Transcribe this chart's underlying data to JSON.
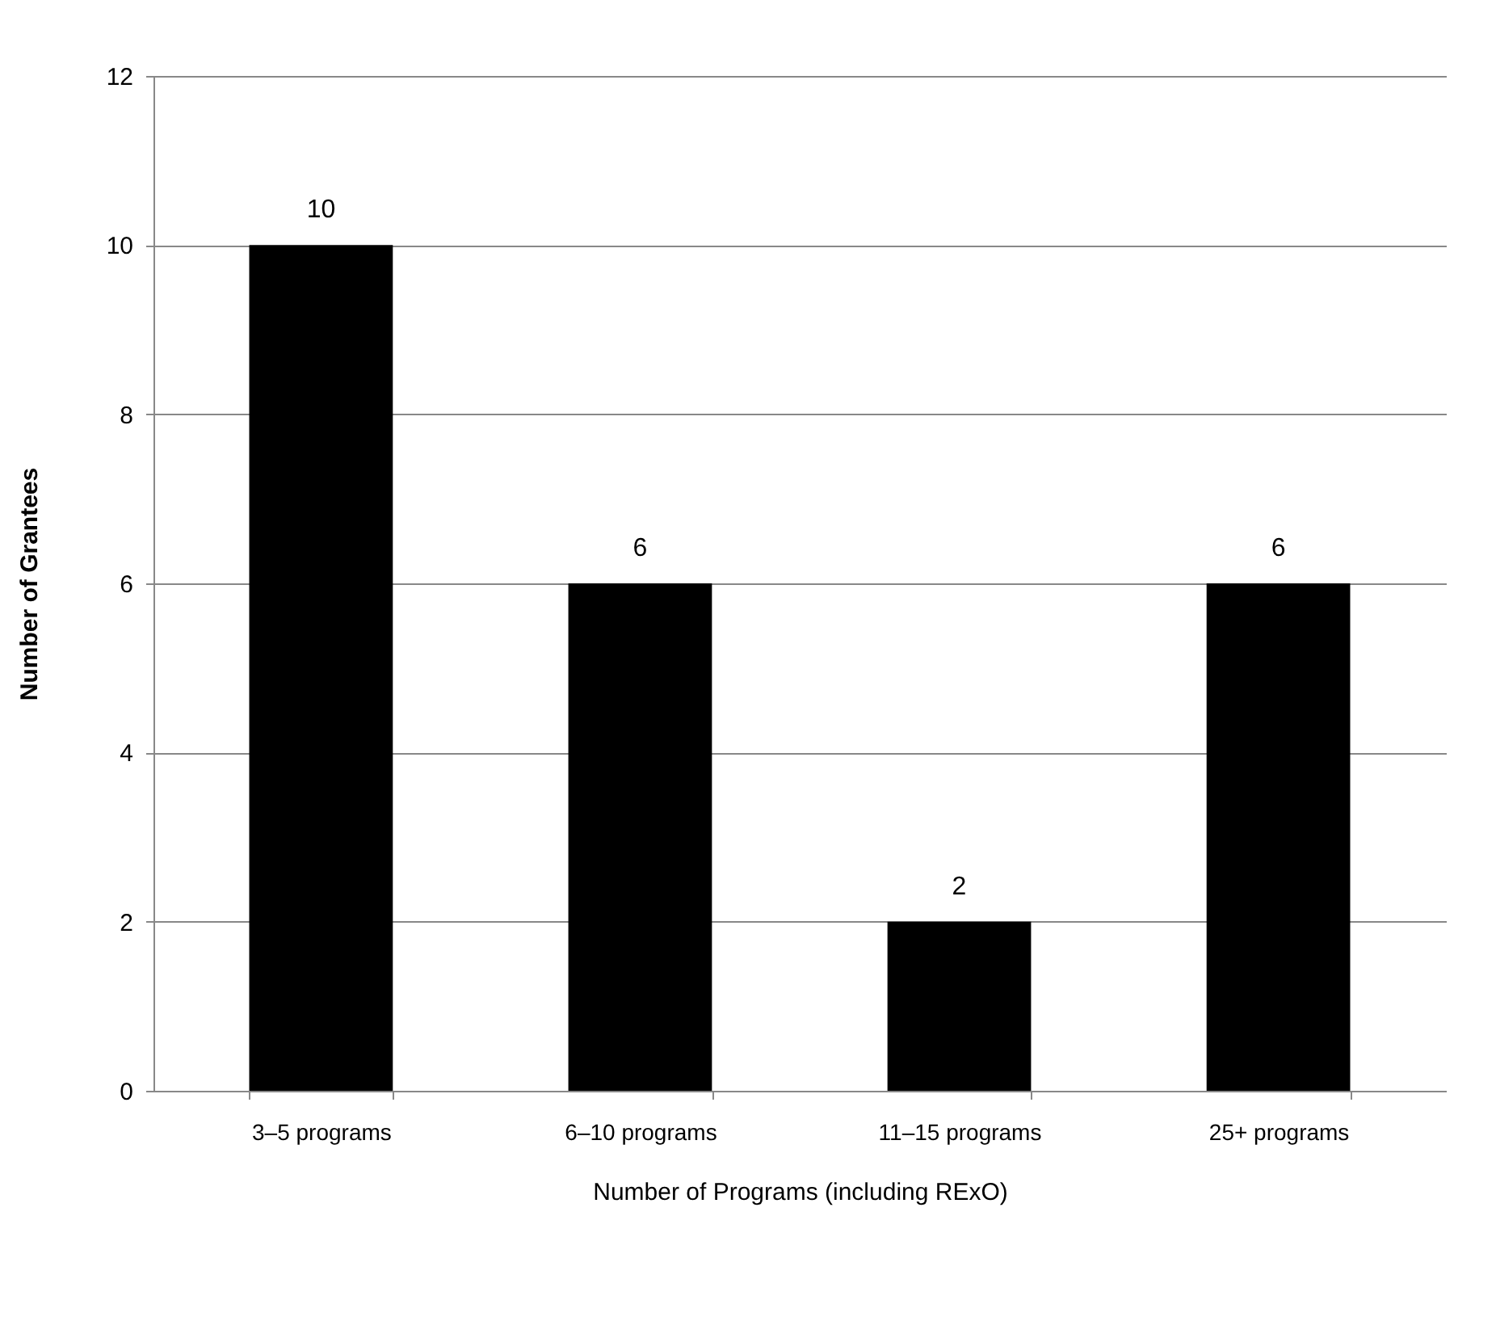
{
  "chart_data": {
    "type": "bar",
    "xlabel": "Number of Programs (including RExO)",
    "ylabel": "Number of Grantees",
    "categories": [
      "3–5 programs",
      "6–10 programs",
      "11–15 programs",
      "25+ programs"
    ],
    "values": [
      10,
      6,
      2,
      6
    ],
    "color": "#000000",
    "ylim": [
      0,
      12
    ],
    "yticks": [
      0,
      2,
      4,
      6,
      8,
      10,
      12
    ],
    "grid": "y",
    "data_labels": true
  }
}
